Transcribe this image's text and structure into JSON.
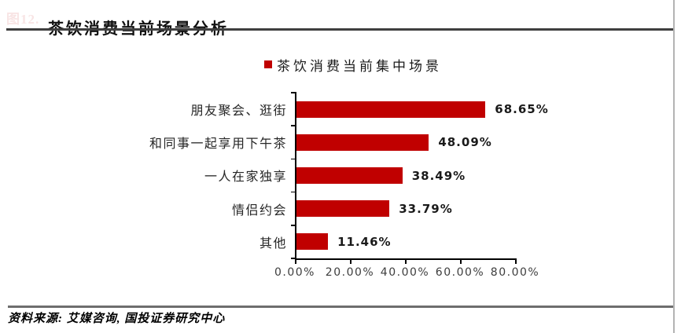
{
  "header": {
    "figure_number": "图12.",
    "title": "茶饮消费当前场景分析"
  },
  "chart_data": {
    "type": "bar",
    "orientation": "horizontal",
    "title": "茶饮消费当前场景分析",
    "legend": [
      "茶饮消费当前集中场景"
    ],
    "legend_position": "top-center",
    "categories": [
      "朋友聚会、逛街",
      "和同事一起享用下午茶",
      "一人在家独享",
      "情侣约会",
      "其他"
    ],
    "values": [
      68.65,
      48.09,
      38.49,
      33.79,
      11.46
    ],
    "value_labels": [
      "68.65%",
      "48.09%",
      "38.49%",
      "33.79%",
      "11.46%"
    ],
    "x_ticks": [
      0,
      20,
      40,
      60,
      80
    ],
    "x_tick_labels": [
      "0.00%",
      "20.00%",
      "40.00%",
      "60.00%",
      "80.00%"
    ],
    "xlim": [
      0,
      80
    ],
    "bar_color": "#c00000",
    "grid": false
  },
  "footer": {
    "source": "资料来源: 艾媒咨询, 国投证券研究中心"
  }
}
